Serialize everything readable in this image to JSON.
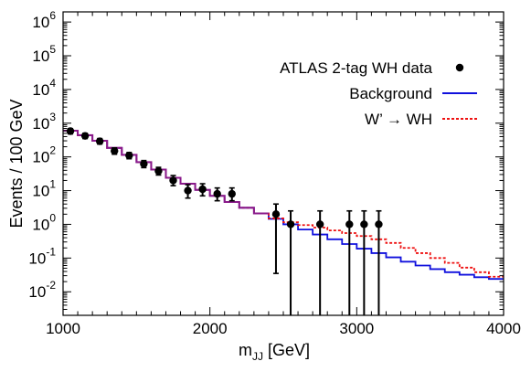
{
  "chart_data": {
    "type": "line",
    "xlabel": "m",
    "xlabel_sub": "JJ",
    "xlabel_unit": " [GeV]",
    "ylabel": "Events / 100 GeV",
    "xlim": [
      1000,
      4000
    ],
    "ylim": [
      0.002,
      2000000
    ],
    "yscale": "log",
    "x_ticks": [
      1000,
      2000,
      3000,
      4000
    ],
    "y_tick_exponents": [
      -2,
      -1,
      0,
      1,
      2,
      3,
      4,
      5,
      6
    ],
    "y_tick_base": "10",
    "legend": {
      "position": "top-right",
      "data_label": "ATLAS 2-tag WH data",
      "background_label": "Background",
      "signal_label": "W’ → WH"
    },
    "colors": {
      "data": "#000000",
      "background": "#1010dd",
      "signal": "#ee1111",
      "overlap": "#8a1a8a"
    },
    "data_points": [
      {
        "x": 1050,
        "y": 580,
        "lo": 480,
        "hi": 690
      },
      {
        "x": 1150,
        "y": 420,
        "lo": 350,
        "hi": 500
      },
      {
        "x": 1250,
        "y": 290,
        "lo": 240,
        "hi": 350
      },
      {
        "x": 1350,
        "y": 150,
        "lo": 120,
        "hi": 185
      },
      {
        "x": 1450,
        "y": 110,
        "lo": 88,
        "hi": 135
      },
      {
        "x": 1550,
        "y": 62,
        "lo": 48,
        "hi": 78
      },
      {
        "x": 1650,
        "y": 38,
        "lo": 29,
        "hi": 49
      },
      {
        "x": 1750,
        "y": 20,
        "lo": 14,
        "hi": 28
      },
      {
        "x": 1850,
        "y": 10,
        "lo": 6,
        "hi": 15
      },
      {
        "x": 1950,
        "y": 11,
        "lo": 7,
        "hi": 16
      },
      {
        "x": 2050,
        "y": 8,
        "lo": 5,
        "hi": 12
      },
      {
        "x": 2150,
        "y": 8,
        "lo": 5,
        "hi": 12
      },
      {
        "x": 2450,
        "y": 2,
        "lo": 0.035,
        "hi": 4
      },
      {
        "x": 2550,
        "y": 1,
        "lo": 0.002,
        "hi": 2.5
      },
      {
        "x": 2750,
        "y": 1,
        "lo": 0.002,
        "hi": 2.5
      },
      {
        "x": 2950,
        "y": 1,
        "lo": 0.002,
        "hi": 2.5
      },
      {
        "x": 3050,
        "y": 1,
        "lo": 0.002,
        "hi": 2.5
      },
      {
        "x": 3150,
        "y": 1,
        "lo": 0.002,
        "hi": 2.5
      }
    ],
    "bin_edges": [
      1000,
      1100,
      1200,
      1300,
      1400,
      1500,
      1600,
      1700,
      1800,
      1900,
      2000,
      2100,
      2200,
      2300,
      2400,
      2500,
      2600,
      2700,
      2800,
      2900,
      3000,
      3100,
      3200,
      3300,
      3400,
      3500,
      3600,
      3700,
      3800,
      3900,
      4000
    ],
    "series": [
      {
        "name": "Background",
        "values": [
          600,
          440,
          300,
          185,
          115,
          70,
          42,
          24,
          16,
          10.5,
          7,
          4.6,
          3.1,
          2.1,
          1.45,
          1.0,
          0.7,
          0.5,
          0.36,
          0.26,
          0.19,
          0.14,
          0.105,
          0.078,
          0.06,
          0.047,
          0.038,
          0.032,
          0.027,
          0.024
        ]
      },
      {
        "name": "W’ → WH",
        "values": [
          600,
          440,
          300,
          185,
          115,
          70,
          42,
          24,
          16,
          10.5,
          7,
          4.6,
          3.1,
          2.1,
          1.5,
          1.15,
          0.95,
          0.8,
          0.66,
          0.55,
          0.45,
          0.36,
          0.28,
          0.2,
          0.14,
          0.1,
          0.072,
          0.052,
          0.038,
          0.028
        ]
      }
    ]
  }
}
